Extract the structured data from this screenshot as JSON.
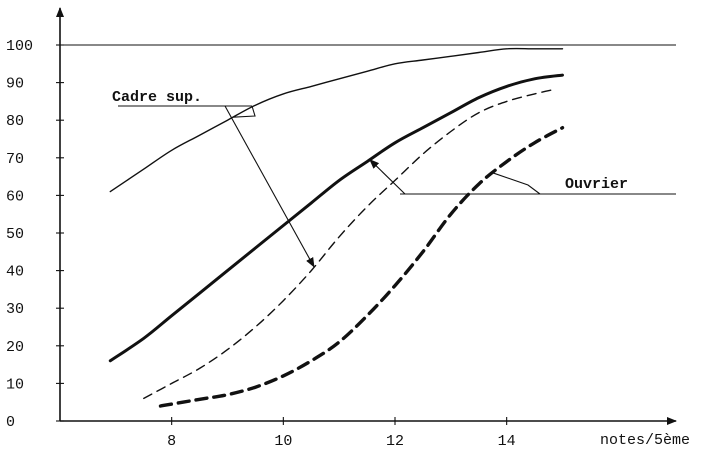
{
  "chart_data": {
    "type": "line",
    "xlabel": "notes/5ème",
    "ylabel": "",
    "xlim": [
      6.0,
      15.6
    ],
    "ylim": [
      0,
      100
    ],
    "x_ticks": [
      8,
      10,
      12,
      14
    ],
    "y_ticks": [
      0,
      10,
      20,
      30,
      40,
      50,
      60,
      70,
      80,
      90,
      100
    ],
    "grid": false,
    "series": [
      {
        "style": "thin-solid",
        "x": [
          6.9,
          7.5,
          8.0,
          8.5,
          9.0,
          9.5,
          10.0,
          10.5,
          11.0,
          11.5,
          12.0,
          12.5,
          13.0,
          13.5,
          14.0,
          14.5,
          15.0
        ],
        "y": [
          61,
          67,
          72,
          76,
          80,
          84,
          87,
          89,
          91,
          93,
          95,
          96,
          97,
          98,
          99,
          99,
          99
        ]
      },
      {
        "style": "thick-solid",
        "x": [
          6.9,
          7.5,
          8.0,
          8.5,
          9.0,
          9.5,
          10.0,
          10.5,
          11.0,
          11.5,
          12.0,
          12.5,
          13.0,
          13.5,
          14.0,
          14.5,
          15.0
        ],
        "y": [
          16,
          22,
          28,
          34,
          40,
          46,
          52,
          58,
          64,
          69,
          74,
          78,
          82,
          86,
          89,
          91,
          92
        ]
      },
      {
        "style": "thin-dashed",
        "x": [
          7.5,
          8.0,
          8.5,
          9.0,
          9.5,
          10.0,
          10.5,
          11.0,
          11.5,
          12.0,
          12.5,
          13.0,
          13.5,
          14.0,
          14.5,
          14.8
        ],
        "y": [
          6,
          10,
          14,
          19,
          25,
          32,
          40,
          49,
          57,
          64,
          71,
          77,
          82,
          85,
          87,
          88
        ]
      },
      {
        "style": "thick-dashed",
        "x": [
          7.8,
          8.2,
          8.6,
          9.0,
          9.5,
          10.0,
          10.5,
          11.0,
          11.5,
          12.0,
          12.5,
          13.0,
          13.5,
          14.0,
          14.5,
          15.0
        ],
        "y": [
          4,
          5,
          6,
          7,
          9,
          12,
          16,
          21,
          28,
          36,
          45,
          55,
          63,
          69,
          74,
          78
        ]
      }
    ],
    "annotations": [
      {
        "text": "Cadre sup."
      },
      {
        "text": "Ouvrier"
      }
    ]
  }
}
